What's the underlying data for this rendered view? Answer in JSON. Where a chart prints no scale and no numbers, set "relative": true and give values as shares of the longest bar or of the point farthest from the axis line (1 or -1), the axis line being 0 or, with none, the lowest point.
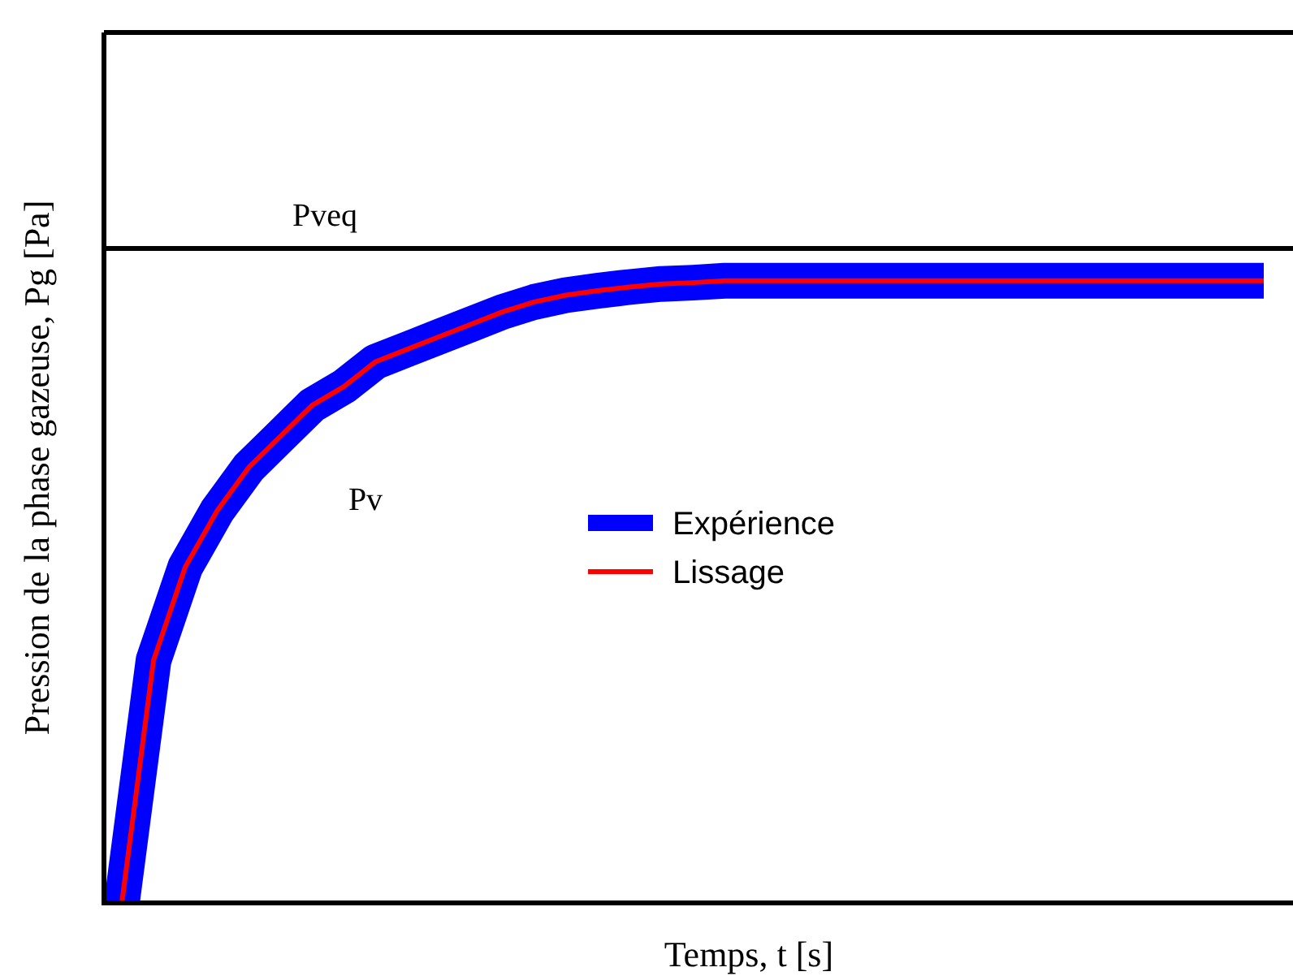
{
  "chart_data": {
    "type": "line",
    "relative": true,
    "xlabel": "Temps, t [s]",
    "ylabel": "Pression de la phase gazeuse, Pg [Pa]",
    "categories": [
      null,
      null,
      null,
      null,
      null,
      null,
      null,
      null,
      null,
      null,
      null,
      null,
      null,
      null,
      null,
      null,
      null,
      null,
      null,
      null,
      null,
      null,
      null,
      null,
      null,
      null,
      null,
      null,
      null,
      null,
      null,
      null,
      null,
      null,
      null,
      null,
      null
    ],
    "series": [
      {
        "name": "Expérience",
        "color": "#0000ff",
        "values": [
          0,
          0.39,
          0.54,
          0.63,
          0.7,
          0.75,
          0.8,
          0.83,
          0.87,
          0.89,
          0.91,
          0.93,
          0.95,
          0.966,
          0.977,
          0.984,
          0.99,
          0.995,
          0.997,
          1,
          1,
          1,
          1,
          1,
          1,
          1,
          1,
          1,
          1,
          1,
          1,
          1,
          1,
          1,
          1,
          1,
          1
        ]
      },
      {
        "name": "Lissage",
        "color": "#ff0000",
        "values": [
          0,
          0.39,
          0.54,
          0.63,
          0.7,
          0.75,
          0.8,
          0.83,
          0.87,
          0.89,
          0.91,
          0.93,
          0.95,
          0.966,
          0.977,
          0.984,
          0.99,
          0.995,
          0.997,
          1,
          1,
          1,
          1,
          1,
          1,
          1,
          1,
          1,
          1,
          1,
          1,
          1,
          1,
          1,
          1,
          1,
          1
        ]
      }
    ],
    "ref_lines": [
      {
        "axis": "y",
        "value": 1.052,
        "label": "Pveq",
        "color": "#000000"
      }
    ],
    "annotations": [
      "Pv"
    ],
    "legend": "center",
    "grid": false
  }
}
